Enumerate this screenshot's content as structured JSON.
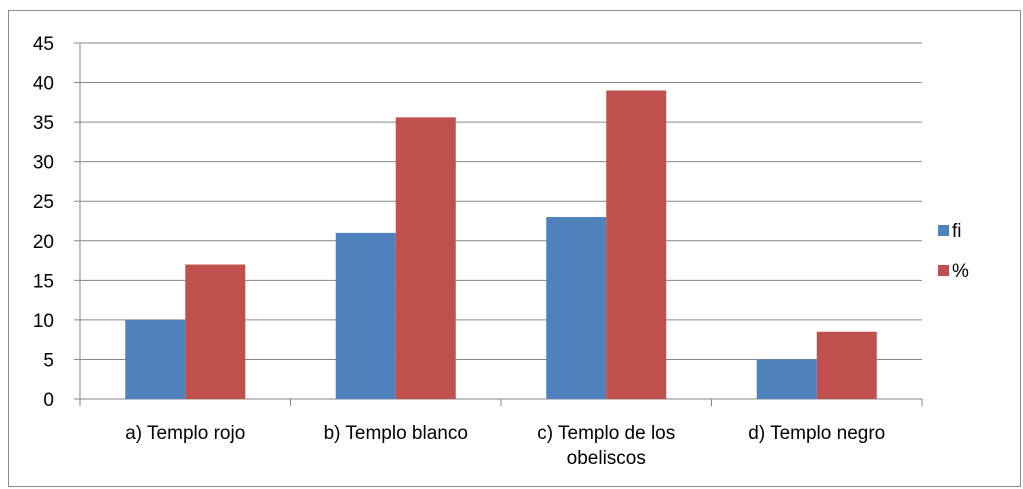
{
  "chart_data": {
    "type": "bar",
    "title": "",
    "xlabel": "",
    "ylabel": "",
    "categories": [
      [
        "a)  Templo rojo"
      ],
      [
        "b)  Templo blanco"
      ],
      [
        "c)  Templo de los",
        "obeliscos"
      ],
      [
        "d)  Templo negro"
      ]
    ],
    "series": [
      {
        "name": "fi",
        "values": [
          10,
          21,
          23,
          5
        ],
        "color": "#4f81bd"
      },
      {
        "name": "%",
        "values": [
          17,
          35.6,
          39,
          8.5
        ],
        "color": "#c0504d"
      }
    ],
    "ylim": [
      0,
      45
    ],
    "yticks": [
      0,
      5,
      10,
      15,
      20,
      25,
      30,
      35,
      40,
      45
    ],
    "grid": true,
    "legend_position": "right"
  }
}
